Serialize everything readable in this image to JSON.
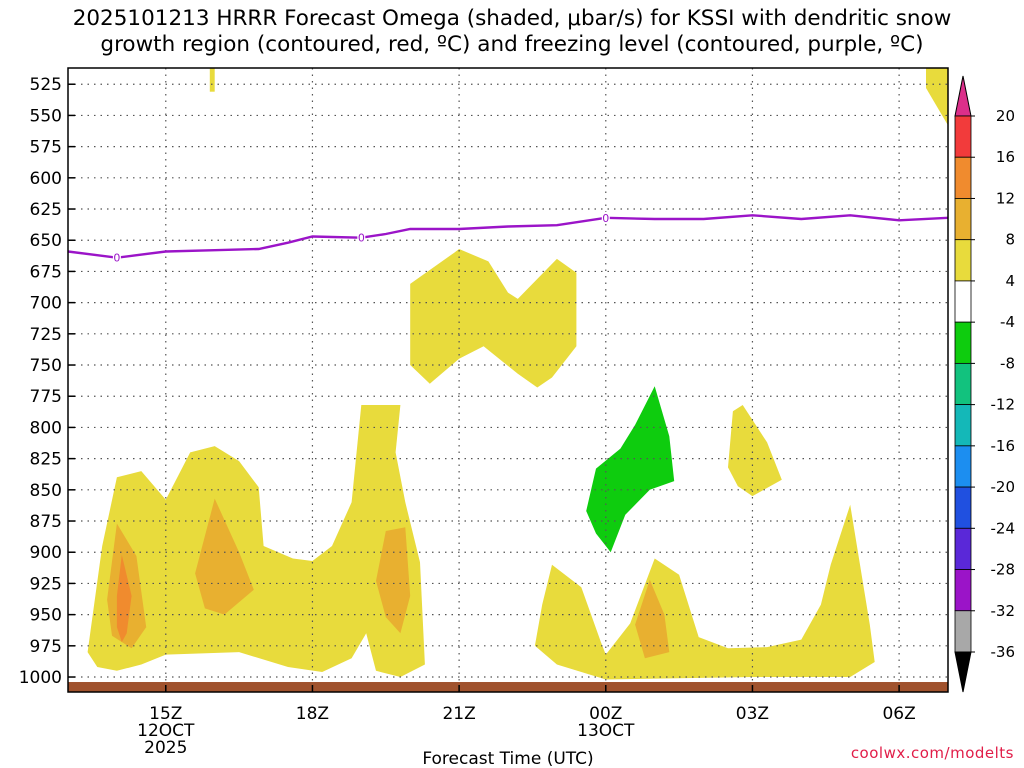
{
  "header": {
    "title_line1": "2025101213 HRRR Forecast Omega (shaded, μbar/s) for KSSI with dendritic snow",
    "title_line2": "growth region (contoured, red, ºC) and freezing level (contoured, purple, ºC)"
  },
  "watermark": "coolwx.com/modelts",
  "chart_data": {
    "type": "time-height section",
    "title": "2025101213 HRRR Forecast Omega (shaded, μbar/s) for KSSI with dendritic snow growth region (contoured, red, ºC) and freezing level (contoured, purple, ºC)",
    "xlabel": "Forecast Time (UTC)",
    "ylabel": "",
    "xlim": [
      13.0,
      31.0
    ],
    "ylim": [
      1012,
      512
    ],
    "x_ticks": [
      {
        "x": 15,
        "label": "15Z",
        "sub": [
          "12OCT",
          "2025"
        ]
      },
      {
        "x": 18,
        "label": "18Z",
        "sub": []
      },
      {
        "x": 21,
        "label": "21Z",
        "sub": []
      },
      {
        "x": 24,
        "label": "00Z",
        "sub": [
          "13OCT"
        ]
      },
      {
        "x": 27,
        "label": "03Z",
        "sub": []
      },
      {
        "x": 30,
        "label": "06Z",
        "sub": []
      }
    ],
    "y_ticks": [
      525,
      550,
      575,
      600,
      625,
      650,
      675,
      700,
      725,
      750,
      775,
      800,
      825,
      850,
      875,
      900,
      925,
      950,
      975,
      1000
    ],
    "colorbar": {
      "labels": [
        "20",
        "16",
        "12",
        "8",
        "4",
        "-4",
        "-8",
        "-12",
        "-16",
        "-20",
        "-24",
        "-28",
        "-32",
        "-36"
      ],
      "colors": [
        "#dc2f8a",
        "#f23b3b",
        "#f08b2e",
        "#e8b030",
        "#e8db3c",
        "#ffffff",
        "#0ecc0e",
        "#12c27e",
        "#14b8b8",
        "#1c8ef0",
        "#2050e0",
        "#5a28d8",
        "#9b14c8",
        "#a8a8a8",
        "#000000"
      ]
    },
    "freezing_level": {
      "label": "0",
      "color": "#9b14c8",
      "x": [
        13.0,
        14.0,
        15.0,
        16.0,
        16.9,
        17.5,
        18.0,
        19.0,
        19.5,
        20.0,
        21.0,
        22.0,
        23.0,
        24.0,
        25.0,
        26.0,
        27.0,
        28.0,
        29.0,
        30.0,
        31.0
      ],
      "pressure_hpa": [
        659,
        664,
        659,
        658,
        657,
        652,
        647,
        648,
        645,
        641,
        641,
        639,
        638,
        632,
        633,
        633,
        630,
        633,
        630,
        634,
        632
      ],
      "label_at_x": [
        14.0,
        19.0,
        24.0
      ]
    },
    "omega_regions": [
      {
        "level": "4 to 8",
        "color": "#e8db3c",
        "time_hpa": [
          [
            15.9,
            512
          ],
          [
            16.0,
            512
          ],
          [
            16.0,
            531
          ],
          [
            15.9,
            531
          ]
        ]
      },
      {
        "level": "4 to 8",
        "color": "#e8db3c",
        "time_hpa": [
          [
            30.55,
            512
          ],
          [
            31.0,
            512
          ],
          [
            31.0,
            558
          ],
          [
            30.55,
            528
          ]
        ]
      },
      {
        "level": "4 to 8",
        "color": "#e8db3c",
        "time_hpa": [
          [
            20.9,
            660
          ],
          [
            21.0,
            657
          ],
          [
            21.6,
            667
          ],
          [
            22.0,
            692
          ],
          [
            22.2,
            697
          ],
          [
            23.0,
            665
          ],
          [
            23.4,
            676
          ],
          [
            23.4,
            735
          ],
          [
            22.9,
            760
          ],
          [
            22.6,
            768
          ],
          [
            22.2,
            757
          ],
          [
            21.5,
            735
          ],
          [
            21.0,
            745
          ],
          [
            20.4,
            765
          ],
          [
            20.0,
            750
          ],
          [
            20.0,
            685
          ]
        ]
      },
      {
        "level": "4 to 8",
        "color": "#e8db3c",
        "time_hpa": [
          [
            13.4,
            980
          ],
          [
            13.7,
            895
          ],
          [
            14.0,
            840
          ],
          [
            14.5,
            835
          ],
          [
            15.0,
            858
          ],
          [
            15.5,
            820
          ],
          [
            16.0,
            815
          ],
          [
            16.5,
            827
          ],
          [
            16.9,
            848
          ],
          [
            17.0,
            895
          ],
          [
            17.6,
            905
          ],
          [
            18.0,
            907
          ],
          [
            18.4,
            895
          ],
          [
            18.8,
            860
          ],
          [
            19.0,
            782
          ],
          [
            19.8,
            782
          ],
          [
            19.7,
            820
          ],
          [
            19.9,
            860
          ],
          [
            20.2,
            908
          ],
          [
            20.3,
            990
          ],
          [
            19.8,
            1000
          ],
          [
            19.3,
            995
          ],
          [
            19.1,
            965
          ],
          [
            18.8,
            985
          ],
          [
            18.2,
            996
          ],
          [
            17.5,
            992
          ],
          [
            16.5,
            980
          ],
          [
            15.0,
            982
          ],
          [
            14.5,
            990
          ],
          [
            14.0,
            995
          ],
          [
            13.6,
            992
          ]
        ]
      },
      {
        "level": "4 to 8",
        "color": "#e8db3c",
        "time_hpa": [
          [
            22.55,
            975
          ],
          [
            22.7,
            942
          ],
          [
            22.9,
            910
          ],
          [
            23.5,
            928
          ],
          [
            23.9,
            972
          ],
          [
            24.0,
            982
          ],
          [
            24.5,
            957
          ],
          [
            25.0,
            905
          ],
          [
            25.5,
            918
          ],
          [
            25.9,
            968
          ],
          [
            26.5,
            977
          ],
          [
            27.3,
            976
          ],
          [
            28.0,
            970
          ],
          [
            28.4,
            942
          ],
          [
            28.6,
            910
          ],
          [
            29.0,
            862
          ],
          [
            29.4,
            958
          ],
          [
            29.5,
            988
          ],
          [
            29.0,
            1000
          ],
          [
            27.0,
            1000
          ],
          [
            24.0,
            1002
          ],
          [
            23.0,
            990
          ]
        ]
      },
      {
        "level": "4 to 8",
        "color": "#e8db3c",
        "time_hpa": [
          [
            26.5,
            832
          ],
          [
            26.6,
            787
          ],
          [
            26.8,
            782
          ],
          [
            27.3,
            812
          ],
          [
            27.6,
            842
          ],
          [
            27.0,
            855
          ],
          [
            26.7,
            847
          ]
        ]
      },
      {
        "level": "8 to 12",
        "color": "#e8b030",
        "time_hpa": [
          [
            13.8,
            938
          ],
          [
            14.0,
            877
          ],
          [
            14.4,
            903
          ],
          [
            14.6,
            960
          ],
          [
            14.3,
            977
          ],
          [
            13.9,
            967
          ]
        ]
      },
      {
        "level": "8 to 12",
        "color": "#e8b030",
        "time_hpa": [
          [
            15.6,
            917
          ],
          [
            16.0,
            857
          ],
          [
            16.5,
            900
          ],
          [
            16.8,
            930
          ],
          [
            16.2,
            950
          ],
          [
            15.8,
            945
          ]
        ]
      },
      {
        "level": "8 to 12",
        "color": "#e8b030",
        "time_hpa": [
          [
            19.3,
            923
          ],
          [
            19.5,
            883
          ],
          [
            19.9,
            880
          ],
          [
            20.0,
            935
          ],
          [
            19.8,
            965
          ],
          [
            19.5,
            952
          ]
        ]
      },
      {
        "level": "8 to 12",
        "color": "#e8b030",
        "time_hpa": [
          [
            24.6,
            958
          ],
          [
            24.9,
            922
          ],
          [
            25.2,
            950
          ],
          [
            25.3,
            980
          ],
          [
            24.8,
            985
          ]
        ]
      },
      {
        "level": "12 to 16",
        "color": "#f08b2e",
        "time_hpa": [
          [
            14.0,
            935
          ],
          [
            14.1,
            902
          ],
          [
            14.3,
            935
          ],
          [
            14.2,
            965
          ],
          [
            14.1,
            972
          ],
          [
            14.0,
            960
          ]
        ]
      },
      {
        "level": "-8 to -4",
        "color": "#0ecc0e",
        "time_hpa": [
          [
            23.6,
            867
          ],
          [
            23.8,
            833
          ],
          [
            24.3,
            817
          ],
          [
            24.6,
            798
          ],
          [
            25.0,
            767
          ],
          [
            25.3,
            807
          ],
          [
            25.4,
            843
          ],
          [
            24.9,
            850
          ],
          [
            24.4,
            870
          ],
          [
            24.1,
            900
          ],
          [
            23.8,
            885
          ]
        ]
      }
    ]
  }
}
